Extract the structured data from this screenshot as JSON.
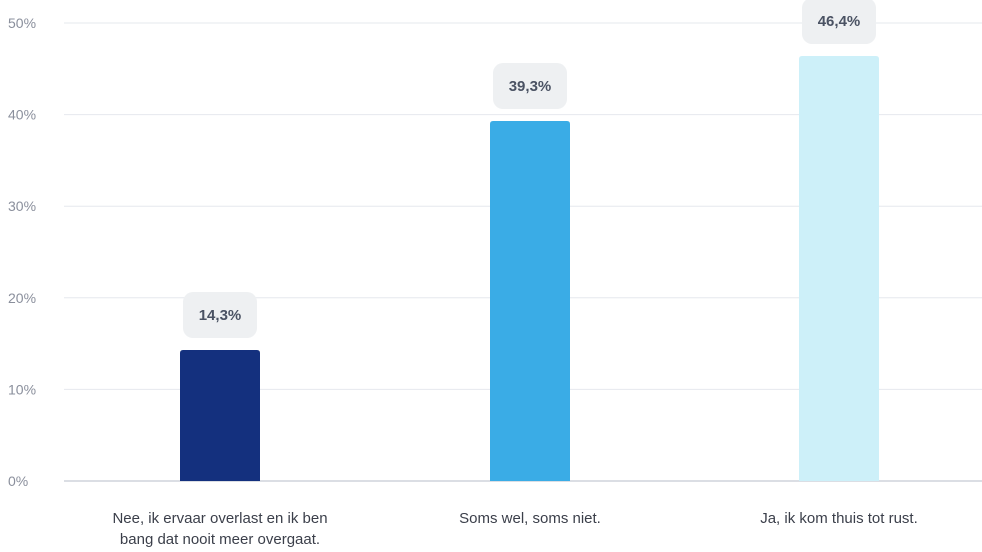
{
  "chart_data": {
    "type": "bar",
    "categories": [
      [
        "Nee, ik ervaar overlast en ik ben",
        "bang dat nooit meer overgaat."
      ],
      [
        "Soms wel, soms niet."
      ],
      [
        "Ja, ik kom thuis tot rust."
      ]
    ],
    "values": [
      14.3,
      39.3,
      46.4
    ],
    "value_labels": [
      "14,3%",
      "39,3%",
      "46,4%"
    ],
    "bar_colors": [
      "#14307e",
      "#3aace6",
      "#cdf0f9"
    ],
    "ylim": [
      0,
      50
    ],
    "yticks": [
      0,
      10,
      20,
      30,
      40,
      50
    ],
    "ytick_labels": [
      "0%",
      "10%",
      "20%",
      "30%",
      "40%",
      "50%"
    ],
    "grid": true,
    "gridline_color": "#e6e8ee",
    "label_bubble_color": "#eef0f2"
  }
}
